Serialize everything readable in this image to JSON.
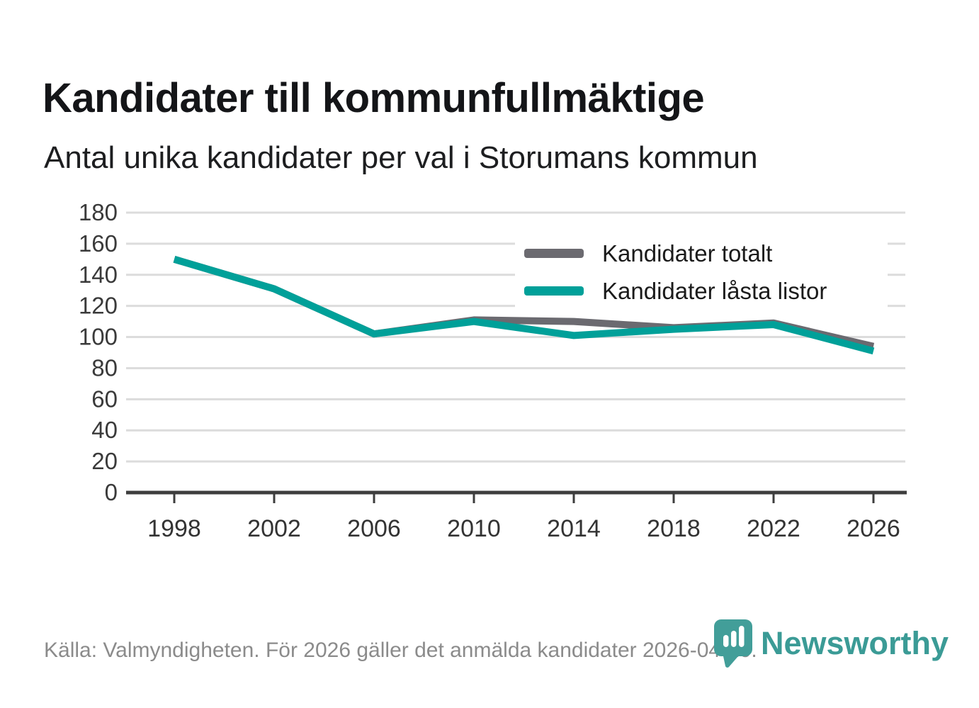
{
  "header": {
    "title": "Kandidater till kommunfullmäktige",
    "subtitle": "Antal unika kandidater per val i Storumans kommun"
  },
  "chart_data": {
    "type": "line",
    "title": "Kandidater till kommunfullmäktige",
    "subtitle": "Antal unika kandidater per val i Storumans kommun",
    "categories": [
      "1998",
      "2002",
      "2006",
      "2010",
      "2014",
      "2018",
      "2022",
      "2026"
    ],
    "series": [
      {
        "name": "Kandidater totalt",
        "color": "#6b6a70",
        "values": [
          150,
          131,
          102,
          111,
          110,
          106,
          109,
          94
        ]
      },
      {
        "name": "Kandidater låsta listor",
        "color": "#00a099",
        "values": [
          150,
          131,
          102,
          110,
          101,
          105,
          108,
          91
        ]
      }
    ],
    "xlabel": "",
    "ylabel": "",
    "ylim": [
      0,
      180
    ],
    "ytick_step": 20,
    "grid": "horizontal",
    "legend_position": "top-right-inside"
  },
  "footer": {
    "source": "Källa: Valmyndigheten. För 2026 gäller det anmälda kandidater 2026-04-10.",
    "brand": "Newsworthy"
  },
  "colors": {
    "series_total_gray": "#6b6a70",
    "series_locked_teal": "#00a099",
    "brand_teal": "#3b9b96",
    "axis_dark": "#3d3d3d",
    "gridline": "#dcdcdc",
    "source_gray": "#8b8b8b"
  }
}
